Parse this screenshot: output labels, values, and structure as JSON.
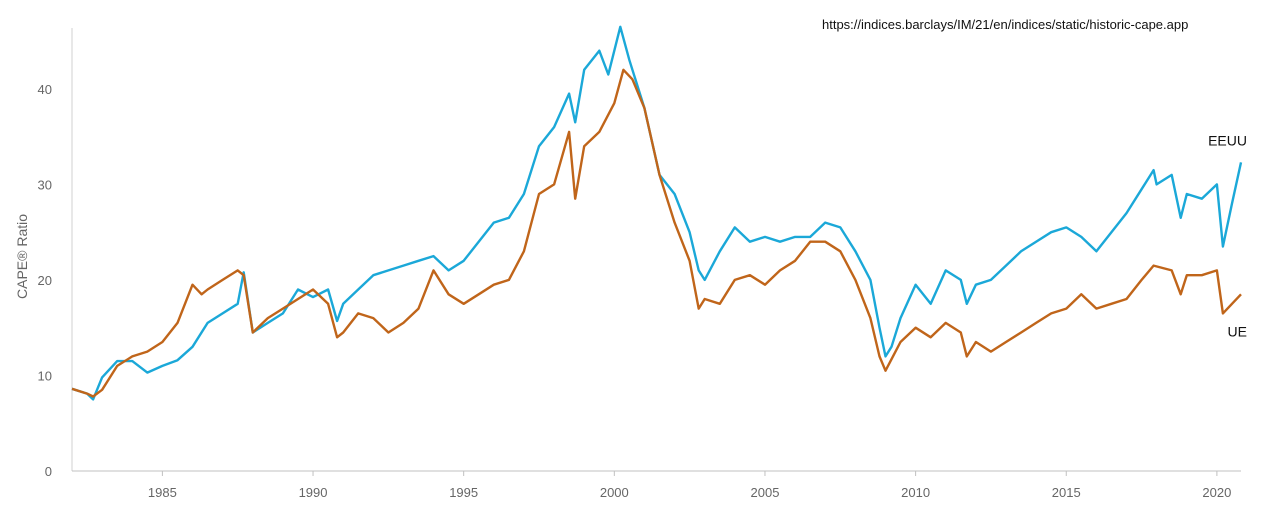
{
  "source_url": "https://indices.barclays/IM/21/en/indices/static/historic-cape.app",
  "chart_data": {
    "type": "line",
    "title": "",
    "xlabel": "",
    "ylabel": "CAPE® Ratio",
    "xlim": [
      1982.0,
      2020.8
    ],
    "ylim": [
      0,
      47
    ],
    "xticks": [
      1985,
      1990,
      1995,
      2000,
      2005,
      2010,
      2015,
      2020
    ],
    "yticks": [
      0,
      10,
      20,
      30,
      40
    ],
    "grid": false,
    "legend": "inline-right",
    "series": [
      {
        "name": "EEUU",
        "color": "#1BA8D8",
        "points": [
          [
            1982.0,
            8.6
          ],
          [
            1982.5,
            8.1
          ],
          [
            1982.7,
            7.5
          ],
          [
            1983.0,
            9.8
          ],
          [
            1983.5,
            11.5
          ],
          [
            1984.0,
            11.5
          ],
          [
            1984.5,
            10.3
          ],
          [
            1985.0,
            11.0
          ],
          [
            1985.5,
            11.6
          ],
          [
            1986.0,
            13.0
          ],
          [
            1986.5,
            15.5
          ],
          [
            1987.0,
            16.5
          ],
          [
            1987.5,
            17.5
          ],
          [
            1987.7,
            20.8
          ],
          [
            1988.0,
            14.5
          ],
          [
            1988.5,
            15.5
          ],
          [
            1989.0,
            16.5
          ],
          [
            1989.5,
            19.0
          ],
          [
            1990.0,
            18.2
          ],
          [
            1990.5,
            19.0
          ],
          [
            1990.8,
            15.7
          ],
          [
            1991.0,
            17.5
          ],
          [
            1991.5,
            19.0
          ],
          [
            1992.0,
            20.5
          ],
          [
            1992.5,
            21.0
          ],
          [
            1993.0,
            21.5
          ],
          [
            1993.5,
            22.0
          ],
          [
            1994.0,
            22.5
          ],
          [
            1994.5,
            21.0
          ],
          [
            1995.0,
            22.0
          ],
          [
            1995.5,
            24.0
          ],
          [
            1996.0,
            26.0
          ],
          [
            1996.5,
            26.5
          ],
          [
            1997.0,
            29.0
          ],
          [
            1997.5,
            34.0
          ],
          [
            1998.0,
            36.0
          ],
          [
            1998.5,
            39.5
          ],
          [
            1998.7,
            36.5
          ],
          [
            1999.0,
            42.0
          ],
          [
            1999.5,
            44.0
          ],
          [
            1999.8,
            41.5
          ],
          [
            2000.0,
            44.0
          ],
          [
            2000.2,
            46.5
          ],
          [
            2000.5,
            43.0
          ],
          [
            2001.0,
            38.0
          ],
          [
            2001.5,
            31.0
          ],
          [
            2002.0,
            29.0
          ],
          [
            2002.5,
            25.0
          ],
          [
            2002.8,
            21.0
          ],
          [
            2003.0,
            20.0
          ],
          [
            2003.5,
            23.0
          ],
          [
            2004.0,
            25.5
          ],
          [
            2004.5,
            24.0
          ],
          [
            2005.0,
            24.5
          ],
          [
            2005.5,
            24.0
          ],
          [
            2006.0,
            24.5
          ],
          [
            2006.5,
            24.5
          ],
          [
            2007.0,
            26.0
          ],
          [
            2007.5,
            25.5
          ],
          [
            2008.0,
            23.0
          ],
          [
            2008.5,
            20.0
          ],
          [
            2008.8,
            15.0
          ],
          [
            2009.0,
            12.0
          ],
          [
            2009.2,
            13.0
          ],
          [
            2009.5,
            16.0
          ],
          [
            2010.0,
            19.5
          ],
          [
            2010.5,
            17.5
          ],
          [
            2011.0,
            21.0
          ],
          [
            2011.5,
            20.0
          ],
          [
            2011.7,
            17.5
          ],
          [
            2012.0,
            19.5
          ],
          [
            2012.5,
            20.0
          ],
          [
            2013.0,
            21.5
          ],
          [
            2013.5,
            23.0
          ],
          [
            2014.0,
            24.0
          ],
          [
            2014.5,
            25.0
          ],
          [
            2015.0,
            25.5
          ],
          [
            2015.5,
            24.5
          ],
          [
            2016.0,
            23.0
          ],
          [
            2016.5,
            25.0
          ],
          [
            2017.0,
            27.0
          ],
          [
            2017.5,
            29.5
          ],
          [
            2017.9,
            31.5
          ],
          [
            2018.0,
            30.0
          ],
          [
            2018.5,
            31.0
          ],
          [
            2018.8,
            26.5
          ],
          [
            2019.0,
            29.0
          ],
          [
            2019.5,
            28.5
          ],
          [
            2020.0,
            30.0
          ],
          [
            2020.2,
            23.5
          ],
          [
            2020.5,
            28.0
          ],
          [
            2020.8,
            32.3
          ]
        ]
      },
      {
        "name": "UE",
        "color": "#C0651A",
        "points": [
          [
            1982.0,
            8.6
          ],
          [
            1982.5,
            8.1
          ],
          [
            1982.7,
            7.8
          ],
          [
            1983.0,
            8.5
          ],
          [
            1983.5,
            11.0
          ],
          [
            1984.0,
            12.0
          ],
          [
            1984.5,
            12.5
          ],
          [
            1985.0,
            13.5
          ],
          [
            1985.5,
            15.5
          ],
          [
            1986.0,
            19.5
          ],
          [
            1986.3,
            18.5
          ],
          [
            1986.5,
            19.0
          ],
          [
            1987.0,
            20.0
          ],
          [
            1987.5,
            21.0
          ],
          [
            1987.7,
            20.5
          ],
          [
            1988.0,
            14.5
          ],
          [
            1988.5,
            16.0
          ],
          [
            1989.0,
            17.0
          ],
          [
            1989.5,
            18.0
          ],
          [
            1990.0,
            19.0
          ],
          [
            1990.5,
            17.5
          ],
          [
            1990.8,
            14.0
          ],
          [
            1991.0,
            14.5
          ],
          [
            1991.5,
            16.5
          ],
          [
            1992.0,
            16.0
          ],
          [
            1992.5,
            14.5
          ],
          [
            1993.0,
            15.5
          ],
          [
            1993.5,
            17.0
          ],
          [
            1994.0,
            21.0
          ],
          [
            1994.5,
            18.5
          ],
          [
            1995.0,
            17.5
          ],
          [
            1995.5,
            18.5
          ],
          [
            1996.0,
            19.5
          ],
          [
            1996.5,
            20.0
          ],
          [
            1997.0,
            23.0
          ],
          [
            1997.5,
            29.0
          ],
          [
            1998.0,
            30.0
          ],
          [
            1998.5,
            35.5
          ],
          [
            1998.7,
            28.5
          ],
          [
            1999.0,
            34.0
          ],
          [
            1999.5,
            35.5
          ],
          [
            2000.0,
            38.5
          ],
          [
            2000.3,
            42.0
          ],
          [
            2000.6,
            41.0
          ],
          [
            2001.0,
            38.0
          ],
          [
            2001.5,
            31.0
          ],
          [
            2002.0,
            26.0
          ],
          [
            2002.5,
            22.0
          ],
          [
            2002.8,
            17.0
          ],
          [
            2003.0,
            18.0
          ],
          [
            2003.5,
            17.5
          ],
          [
            2004.0,
            20.0
          ],
          [
            2004.5,
            20.5
          ],
          [
            2005.0,
            19.5
          ],
          [
            2005.5,
            21.0
          ],
          [
            2006.0,
            22.0
          ],
          [
            2006.5,
            24.0
          ],
          [
            2007.0,
            24.0
          ],
          [
            2007.5,
            23.0
          ],
          [
            2008.0,
            20.0
          ],
          [
            2008.5,
            16.0
          ],
          [
            2008.8,
            12.0
          ],
          [
            2009.0,
            10.5
          ],
          [
            2009.5,
            13.5
          ],
          [
            2010.0,
            15.0
          ],
          [
            2010.5,
            14.0
          ],
          [
            2011.0,
            15.5
          ],
          [
            2011.5,
            14.5
          ],
          [
            2011.7,
            12.0
          ],
          [
            2012.0,
            13.5
          ],
          [
            2012.5,
            12.5
          ],
          [
            2013.0,
            13.5
          ],
          [
            2013.5,
            14.5
          ],
          [
            2014.0,
            15.5
          ],
          [
            2014.5,
            16.5
          ],
          [
            2015.0,
            17.0
          ],
          [
            2015.5,
            18.5
          ],
          [
            2016.0,
            17.0
          ],
          [
            2016.5,
            17.5
          ],
          [
            2017.0,
            18.0
          ],
          [
            2017.5,
            20.0
          ],
          [
            2017.9,
            21.5
          ],
          [
            2018.5,
            21.0
          ],
          [
            2018.8,
            18.5
          ],
          [
            2019.0,
            20.5
          ],
          [
            2019.5,
            20.5
          ],
          [
            2020.0,
            21.0
          ],
          [
            2020.2,
            16.5
          ],
          [
            2020.5,
            17.5
          ],
          [
            2020.8,
            18.5
          ]
        ]
      }
    ]
  }
}
